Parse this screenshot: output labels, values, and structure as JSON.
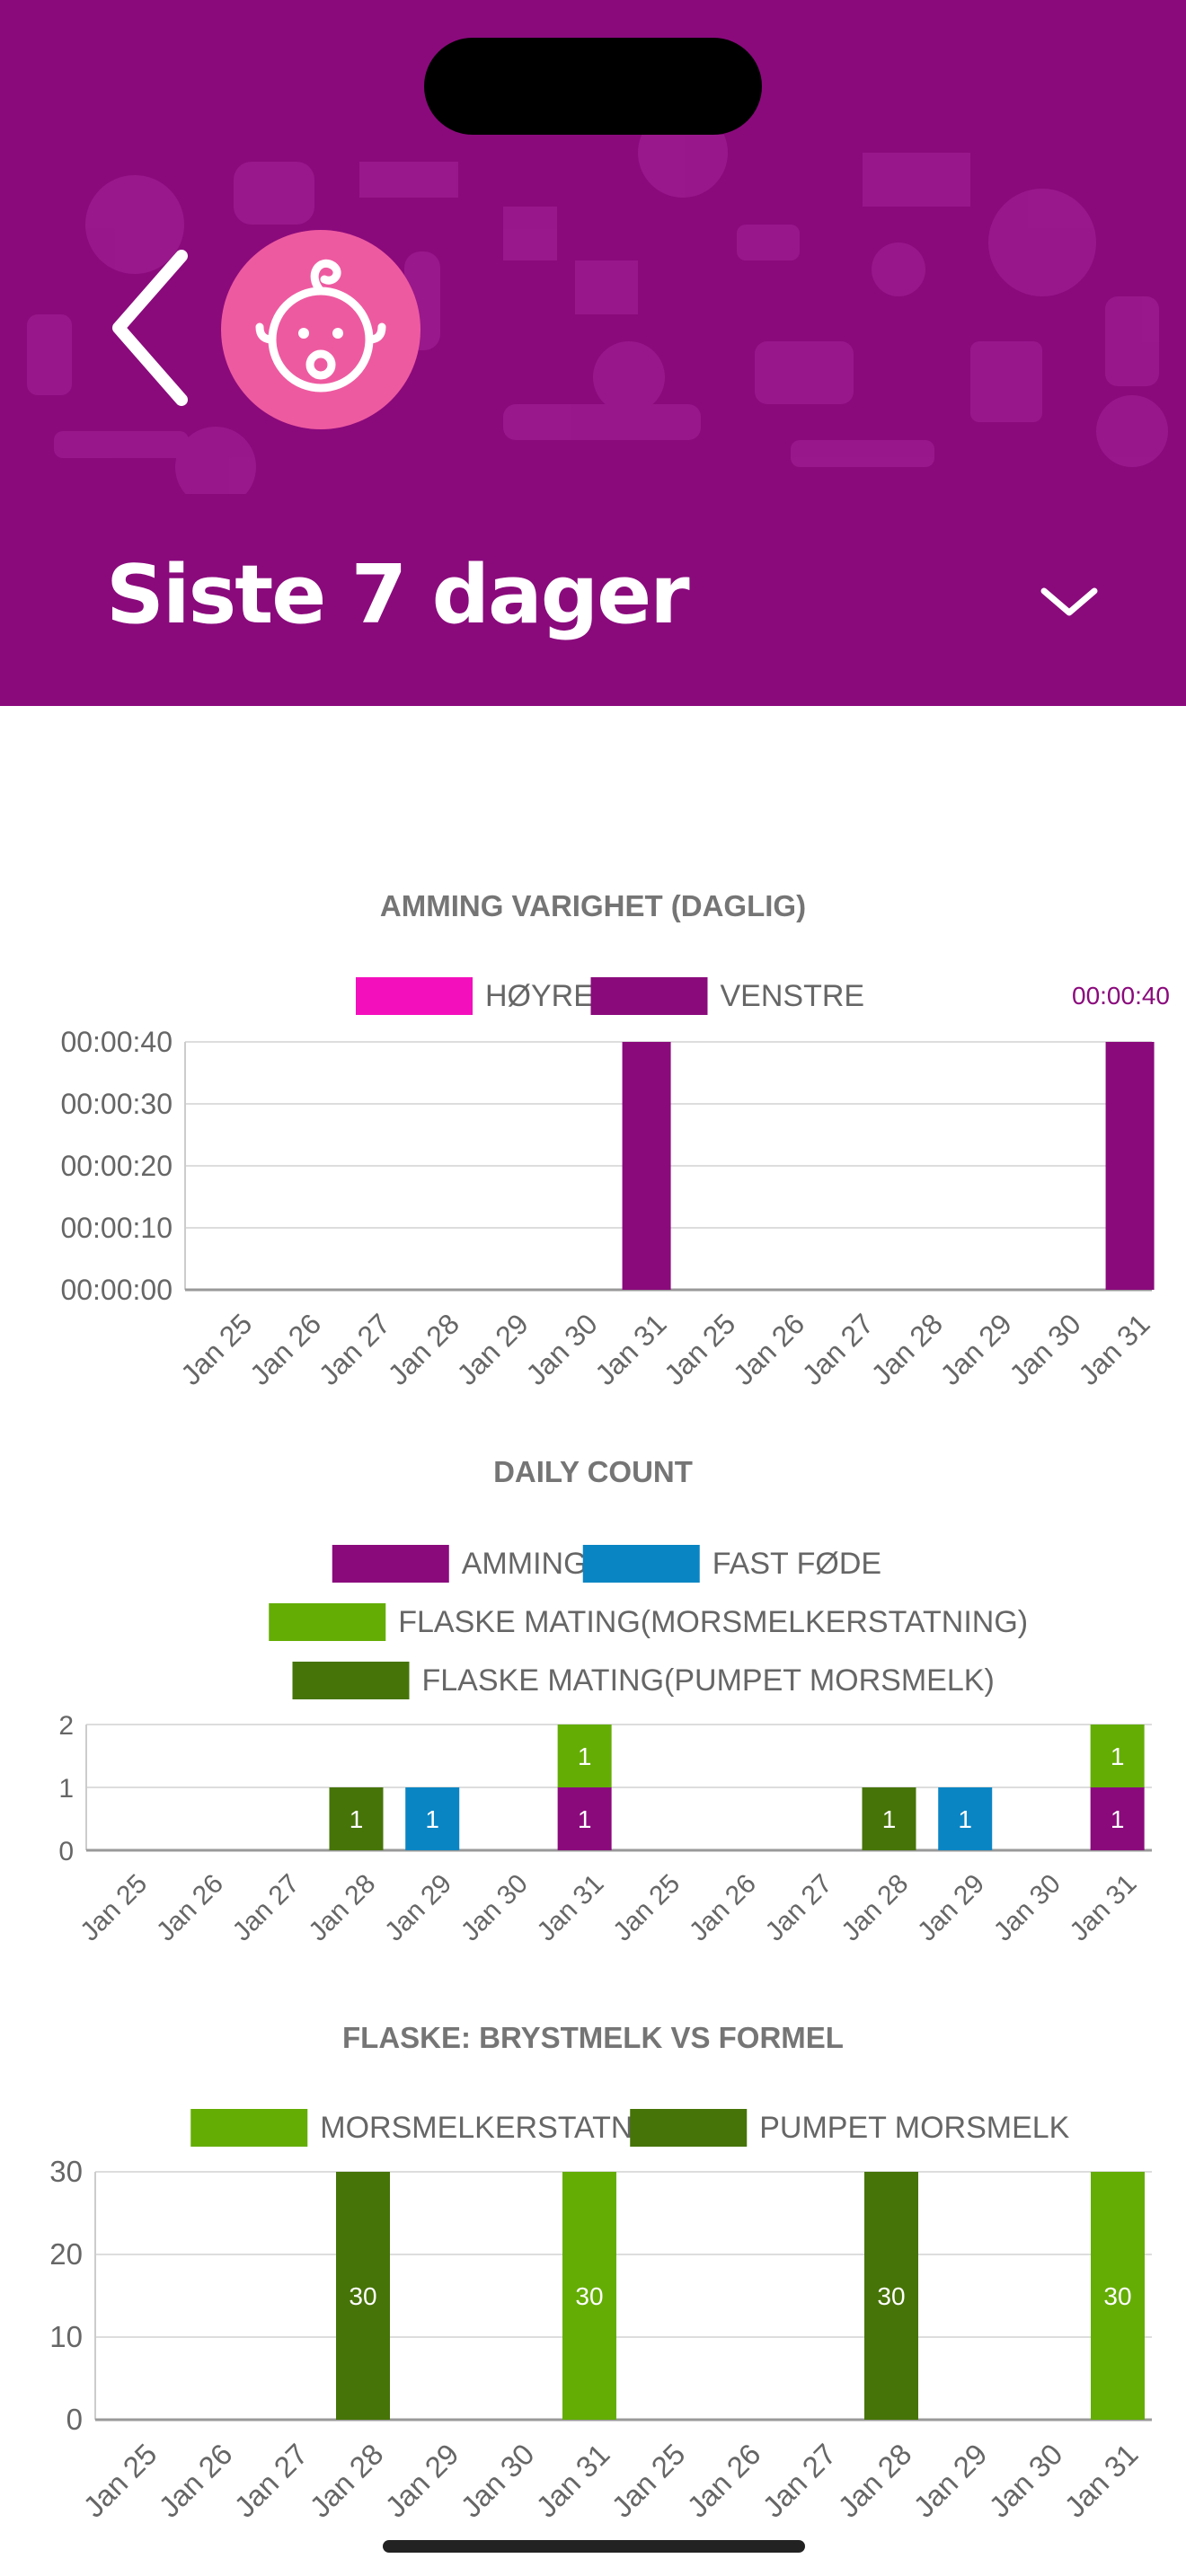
{
  "header": {
    "title": "Siste 7 dager",
    "colors": {
      "background": "#8a0a7c",
      "avatar": "#ee5aa0"
    },
    "icons": {
      "back": "chevron-left-icon",
      "avatar": "baby-face-icon",
      "dropdown": "chevron-down-icon"
    }
  },
  "chart_data": [
    {
      "type": "bar",
      "title": "AMMING VARIGHET (DAGLIG)",
      "categories": [
        "Jan 25",
        "Jan 26",
        "Jan 27",
        "Jan 28",
        "Jan 29",
        "Jan 30",
        "Jan 31",
        "Jan 25",
        "Jan 26",
        "Jan 27",
        "Jan 28",
        "Jan 29",
        "Jan 30",
        "Jan 31"
      ],
      "y_ticks": [
        "00:00:00",
        "00:00:10",
        "00:00:20",
        "00:00:30",
        "00:00:40"
      ],
      "ylim": [
        0,
        40
      ],
      "corner_label": "00:00:40",
      "series": [
        {
          "name": "HØYRE",
          "color": "#f40fbd",
          "values": [
            0,
            0,
            0,
            0,
            0,
            0,
            0,
            0,
            0,
            0,
            0,
            0,
            0,
            0
          ]
        },
        {
          "name": "VENSTRE",
          "color": "#8a0a7c",
          "values": [
            0,
            0,
            0,
            0,
            0,
            0,
            40,
            0,
            0,
            0,
            0,
            0,
            0,
            40
          ]
        }
      ],
      "grid": true,
      "legend": "top"
    },
    {
      "type": "bar",
      "stacked": true,
      "title": "DAILY COUNT",
      "categories": [
        "Jan 25",
        "Jan 26",
        "Jan 27",
        "Jan 28",
        "Jan 29",
        "Jan 30",
        "Jan 31",
        "Jan 25",
        "Jan 26",
        "Jan 27",
        "Jan 28",
        "Jan 29",
        "Jan 30",
        "Jan 31"
      ],
      "y_ticks": [
        "0",
        "1",
        "2"
      ],
      "ylim": [
        0,
        2
      ],
      "series": [
        {
          "name": "AMMING",
          "color": "#8a0a7c",
          "values": [
            0,
            0,
            0,
            0,
            0,
            0,
            1,
            0,
            0,
            0,
            0,
            0,
            0,
            1
          ]
        },
        {
          "name": "FAST FØDE",
          "color": "#0a85c4",
          "values": [
            0,
            0,
            0,
            0,
            1,
            0,
            0,
            0,
            0,
            0,
            0,
            1,
            0,
            0
          ]
        },
        {
          "name": "FLASKE MATING(MORSMELKERSTATNING)",
          "color": "#64ad05",
          "values": [
            0,
            0,
            0,
            0,
            0,
            0,
            1,
            0,
            0,
            0,
            0,
            0,
            0,
            1
          ]
        },
        {
          "name": "FLASKE MATING(PUMPET MORSMELK)",
          "color": "#467408",
          "values": [
            0,
            0,
            0,
            1,
            0,
            0,
            0,
            0,
            0,
            0,
            1,
            0,
            0,
            0
          ]
        }
      ],
      "data_labels": true,
      "grid": true,
      "legend": "top"
    },
    {
      "type": "bar",
      "title": "FLASKE: BRYSTMELK VS FORMEL",
      "categories": [
        "Jan 25",
        "Jan 26",
        "Jan 27",
        "Jan 28",
        "Jan 29",
        "Jan 30",
        "Jan 31",
        "Jan 25",
        "Jan 26",
        "Jan 27",
        "Jan 28",
        "Jan 29",
        "Jan 30",
        "Jan 31"
      ],
      "y_ticks": [
        "0",
        "10",
        "20",
        "30"
      ],
      "ylim": [
        0,
        30
      ],
      "series": [
        {
          "name": "MORSMELKERSTATNING",
          "color": "#64ad05",
          "values": [
            0,
            0,
            0,
            0,
            0,
            0,
            30,
            0,
            0,
            0,
            0,
            0,
            0,
            30
          ]
        },
        {
          "name": "PUMPET MORSMELK",
          "color": "#467408",
          "values": [
            0,
            0,
            0,
            30,
            0,
            0,
            0,
            0,
            0,
            0,
            30,
            0,
            0,
            0
          ]
        }
      ],
      "data_labels": true,
      "grid": true,
      "legend": "top"
    }
  ]
}
